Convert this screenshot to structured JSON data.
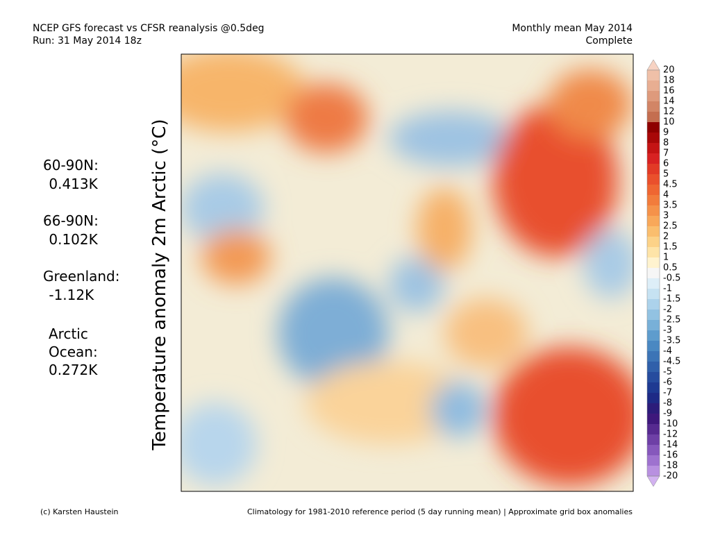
{
  "header": {
    "title": "NCEP GFS forecast vs CFSR reanalysis @0.5deg",
    "run": "Run: 31 May 2014 18z",
    "period": "Monthly mean May 2014",
    "status": "Complete"
  },
  "axis_label": "Temperature anomaly 2m Arctic (°C)",
  "stats": [
    {
      "region": "60-90N:",
      "value": " 0.413K"
    },
    {
      "region": "66-90N:",
      "value": " 0.102K"
    },
    {
      "region": "Greenland:",
      "value": " -1.12K"
    },
    {
      "region": "Arctic",
      "region2": "Ocean:",
      "value": "0.272K"
    }
  ],
  "colorbar": {
    "labels": [
      "20",
      "18",
      "16",
      "14",
      "12",
      "10",
      "9",
      "8",
      "7",
      "6",
      "5",
      "4.5",
      "4",
      "3.5",
      "3",
      "2.5",
      "2",
      "1.5",
      "1",
      "0.5",
      "-0.5",
      "-1",
      "-1.5",
      "-2",
      "-2.5",
      "-3",
      "-3.5",
      "-4",
      "-4.5",
      "-5",
      "-6",
      "-7",
      "-8",
      "-9",
      "-10",
      "-12",
      "-14",
      "-16",
      "-18",
      "-20"
    ]
  },
  "footer": {
    "credit": "(c) Karsten Haustein",
    "note": "Climatology for 1981-2010 reference period (5 day running mean) | Approximate grid box anomalies"
  }
}
